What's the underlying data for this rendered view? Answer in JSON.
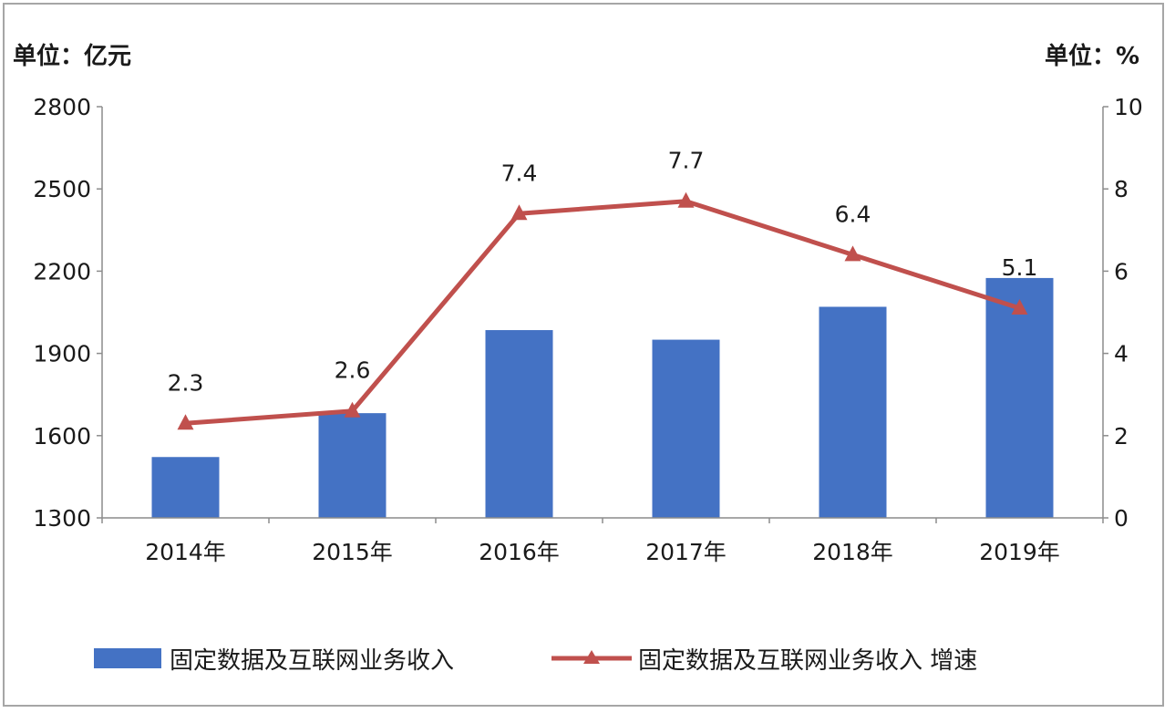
{
  "chart_data": {
    "type": "bar+line",
    "categories": [
      "2014年",
      "2015年",
      "2016年",
      "2017年",
      "2018年",
      "2019年"
    ],
    "series": [
      {
        "name": "固定数据及互联网业务收入",
        "type": "bar",
        "axis": "left",
        "color": "#4472c4",
        "values": [
          1522,
          1682,
          1985,
          1950,
          2070,
          2175
        ]
      },
      {
        "name": "固定数据及互联网业务收入 增速",
        "type": "line",
        "axis": "right",
        "color": "#c0504d",
        "marker": "triangle",
        "values": [
          2.3,
          2.6,
          7.4,
          7.7,
          6.4,
          5.1
        ],
        "labels": [
          "2.3",
          "2.6",
          "7.4",
          "7.7",
          "6.4",
          "5.1"
        ]
      }
    ],
    "left_axis": {
      "unit_label": "单位：亿元",
      "range": [
        1300,
        2800
      ],
      "ticks": [
        "1300",
        "1600",
        "1900",
        "2200",
        "2500",
        "2800"
      ]
    },
    "right_axis": {
      "unit_label": "单位：%",
      "range": [
        0,
        10
      ],
      "ticks": [
        "0",
        "2",
        "4",
        "6",
        "8",
        "10"
      ]
    },
    "legend_position": "bottom",
    "grid": false
  }
}
